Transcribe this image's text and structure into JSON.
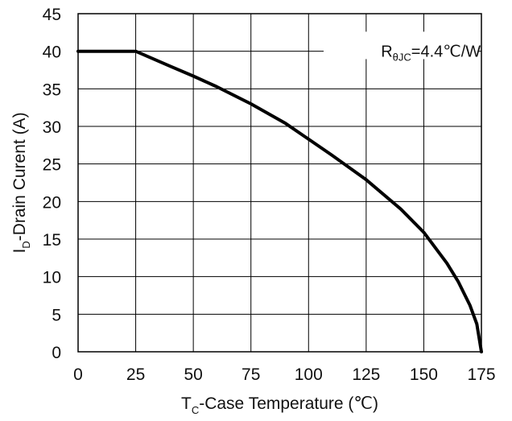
{
  "chart_data": {
    "type": "line",
    "title": "",
    "xlabel": {
      "main": "T",
      "sub": "C",
      "rest": "-Case Temperature (℃)"
    },
    "ylabel": {
      "main": "I",
      "sub": "D",
      "rest": "-Drain Curent (A)"
    },
    "xlim": [
      0,
      175
    ],
    "ylim": [
      0,
      45
    ],
    "x_ticks": [
      0,
      25,
      50,
      75,
      100,
      125,
      150,
      175
    ],
    "y_ticks": [
      0,
      5,
      10,
      15,
      20,
      25,
      30,
      35,
      40,
      45
    ],
    "grid": true,
    "annotation": {
      "main": "R",
      "sub": "θJC",
      "rest": "=4.4℃/W"
    },
    "series": [
      {
        "x": [
          0,
          25,
          40,
          50,
          60,
          75,
          90,
          100,
          110,
          125,
          140,
          150,
          160,
          165,
          170,
          173,
          175
        ],
        "y": [
          40,
          40,
          38,
          36.7,
          35.3,
          33,
          30.4,
          28.3,
          26.2,
          22.9,
          19,
          15.9,
          11.8,
          9.3,
          6.2,
          3.7,
          0
        ]
      }
    ],
    "colors": {
      "line": "#000000",
      "grid": "#000000",
      "background": "#ffffff"
    }
  }
}
